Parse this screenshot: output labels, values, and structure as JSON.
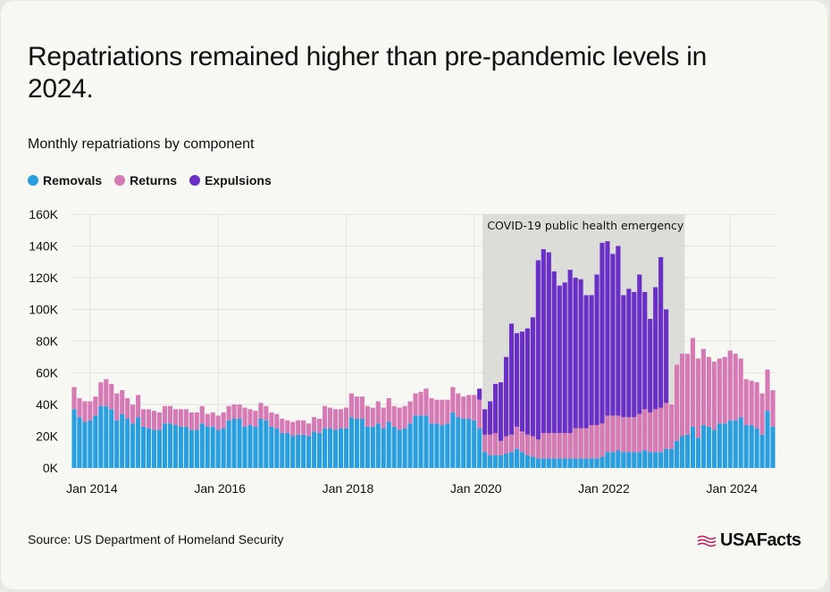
{
  "title": "Repatriations remained higher than pre-pandemic levels in 2024.",
  "subtitle": "Monthly repatriations by component",
  "legend": [
    {
      "label": "Removals",
      "color": "#2a9fdf"
    },
    {
      "label": "Returns",
      "color": "#d57ab4"
    },
    {
      "label": "Expulsions",
      "color": "#6a2fc6"
    }
  ],
  "source": "Source: US Department of Homeland Security",
  "logo_text": "USAFacts",
  "chart_data": {
    "type": "bar",
    "stacked": true,
    "title": "Monthly repatriations by component",
    "x_start": "2013-10",
    "x_ticks": [
      "Jan 2014",
      "Jan 2016",
      "Jan 2018",
      "Jan 2020",
      "Jan 2022",
      "Jan 2024"
    ],
    "y_ticks": [
      "0K",
      "20K",
      "40K",
      "60K",
      "80K",
      "100K",
      "120K",
      "140K",
      "160K"
    ],
    "ylim": [
      0,
      160000
    ],
    "annotation": {
      "label": "COVID-19 public health emergency",
      "start_index": 77,
      "end_index": 114
    },
    "series": [
      {
        "name": "Removals",
        "color": "#2a9fdf",
        "values": [
          37,
          32,
          29,
          30,
          33,
          39,
          39,
          37,
          30,
          34,
          31,
          28,
          32,
          26,
          25,
          24,
          24,
          28,
          28,
          27,
          26,
          26,
          24,
          24,
          28,
          26,
          26,
          24,
          25,
          30,
          31,
          31,
          26,
          27,
          26,
          31,
          30,
          26,
          25,
          22,
          22,
          20,
          21,
          21,
          20,
          23,
          22,
          25,
          25,
          24,
          25,
          25,
          32,
          31,
          31,
          26,
          26,
          28,
          25,
          29,
          26,
          24,
          25,
          28,
          33,
          33,
          33,
          28,
          28,
          27,
          28,
          35,
          32,
          31,
          31,
          30,
          25,
          10,
          8,
          8,
          8,
          9,
          10,
          12,
          10,
          8,
          7,
          6,
          6,
          6,
          6,
          6,
          6,
          6,
          6,
          6,
          6,
          6,
          6,
          7,
          10,
          10,
          11,
          10,
          10,
          10,
          10,
          11,
          10,
          10,
          10,
          12,
          12,
          17,
          20,
          21,
          26,
          19,
          27,
          26,
          24,
          28,
          28,
          30,
          30,
          32,
          27,
          27,
          25,
          21,
          36,
          26
        ]
      },
      {
        "name": "Returns",
        "color": "#d57ab4",
        "values": [
          14,
          12,
          13,
          12,
          12,
          15,
          17,
          16,
          17,
          15,
          13,
          12,
          14,
          11,
          12,
          12,
          11,
          11,
          11,
          10,
          11,
          11,
          11,
          11,
          11,
          8,
          9,
          9,
          10,
          9,
          9,
          9,
          12,
          10,
          10,
          10,
          9,
          9,
          9,
          9,
          8,
          9,
          9,
          9,
          8,
          9,
          9,
          14,
          13,
          13,
          12,
          13,
          15,
          14,
          14,
          13,
          12,
          14,
          13,
          15,
          13,
          14,
          14,
          14,
          14,
          15,
          17,
          16,
          15,
          16,
          15,
          16,
          15,
          14,
          15,
          16,
          18,
          11,
          13,
          14,
          9,
          11,
          11,
          14,
          13,
          13,
          13,
          12,
          16,
          16,
          16,
          16,
          16,
          16,
          19,
          19,
          19,
          21,
          21,
          21,
          23,
          23,
          22,
          22,
          22,
          22,
          24,
          26,
          25,
          27,
          28,
          29,
          28,
          48,
          52,
          51,
          56,
          50,
          48,
          44,
          43,
          41,
          42,
          44,
          42,
          37,
          29,
          28,
          29,
          26,
          26,
          23
        ]
      },
      {
        "name": "Expulsions",
        "color": "#6a2fc6",
        "values": [
          0,
          0,
          0,
          0,
          0,
          0,
          0,
          0,
          0,
          0,
          0,
          0,
          0,
          0,
          0,
          0,
          0,
          0,
          0,
          0,
          0,
          0,
          0,
          0,
          0,
          0,
          0,
          0,
          0,
          0,
          0,
          0,
          0,
          0,
          0,
          0,
          0,
          0,
          0,
          0,
          0,
          0,
          0,
          0,
          0,
          0,
          0,
          0,
          0,
          0,
          0,
          0,
          0,
          0,
          0,
          0,
          0,
          0,
          0,
          0,
          0,
          0,
          0,
          0,
          0,
          0,
          0,
          0,
          0,
          0,
          0,
          0,
          0,
          0,
          0,
          0,
          7,
          16,
          21,
          31,
          37,
          50,
          70,
          59,
          63,
          67,
          75,
          113,
          116,
          114,
          102,
          93,
          95,
          103,
          95,
          94,
          84,
          82,
          95,
          114,
          110,
          102,
          107,
          77,
          81,
          79,
          88,
          74,
          59,
          77,
          95,
          59,
          0,
          0,
          0,
          0,
          0,
          0,
          0,
          0,
          0,
          0,
          0,
          0,
          0,
          0,
          0,
          0,
          0,
          0,
          0,
          0
        ]
      }
    ],
    "units": "thousands"
  }
}
